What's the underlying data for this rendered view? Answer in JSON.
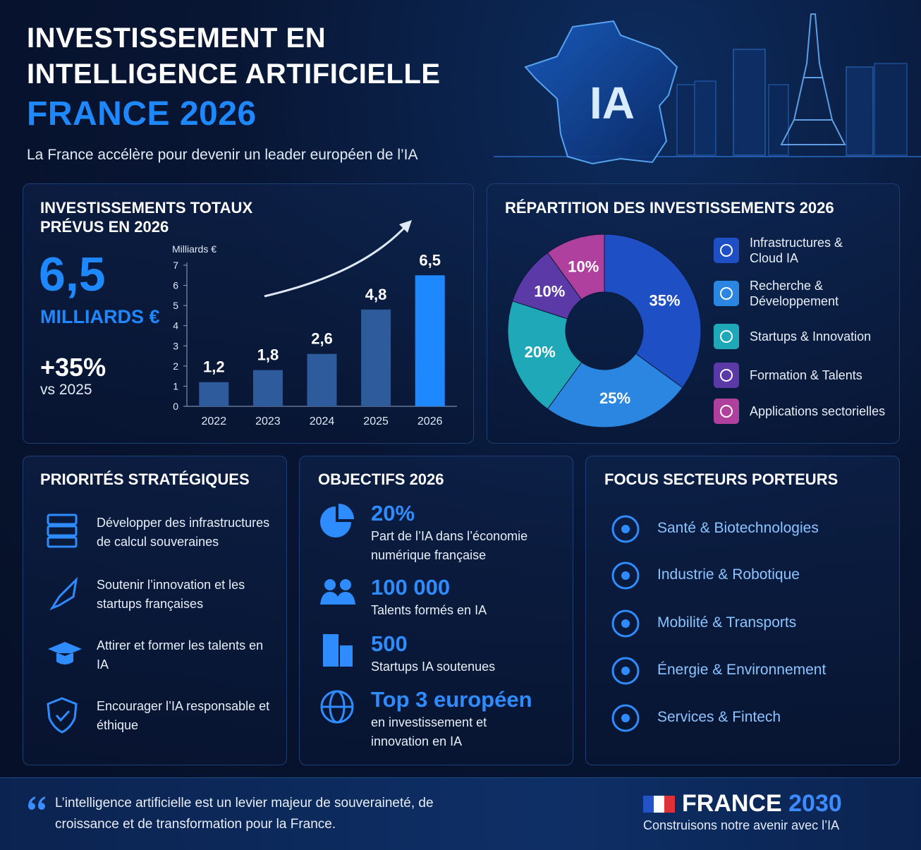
{
  "header": {
    "title_line1": "INVESTISSEMENT EN",
    "title_line2": "INTELLIGENCE ARTIFICIELLE",
    "title_highlight": "FRANCE 2026",
    "subtitle": "La France accélère pour devenir un leader européen de l’IA",
    "map_label": "IA"
  },
  "totals": {
    "title_line1": "INVESTISSEMENTS TOTAUX",
    "title_line2": "PRÉVUS EN 2026",
    "big_value": "6,5",
    "big_unit": "MILLIARDS €",
    "growth": "+35%",
    "growth_ref": "vs 2025"
  },
  "chart_data": [
    {
      "type": "bar",
      "y_label": "Milliards €",
      "categories": [
        "2022",
        "2023",
        "2024",
        "2025",
        "2026"
      ],
      "values": [
        1.2,
        1.8,
        2.6,
        4.8,
        6.5
      ],
      "value_labels": [
        "1,2",
        "1,8",
        "2,6",
        "4,8",
        "6,5"
      ],
      "colors": [
        "#2d5b9c",
        "#2d5b9c",
        "#2d5b9c",
        "#2d5b9c",
        "#1e88ff"
      ],
      "ylim": [
        0,
        7
      ],
      "yticks": [
        0,
        1,
        2,
        3,
        4,
        5,
        6,
        7
      ]
    },
    {
      "type": "donut",
      "title": "RÉPARTITION DES INVESTISSEMENTS 2026",
      "categories": [
        "Infrastructures & Cloud IA",
        "Recherche & Développement",
        "Startups & Innovation",
        "Formation & Talents",
        "Applications sectorielles"
      ],
      "values": [
        35,
        25,
        20,
        10,
        10
      ],
      "value_labels": [
        "35%",
        "25%",
        "20%",
        "10%",
        "10%"
      ],
      "colors": [
        "#1f4fc4",
        "#2a86e0",
        "#1fa8b8",
        "#5b3aa8",
        "#b0409e"
      ]
    }
  ],
  "priorities": {
    "title": "PRIORITÉS STRATÉGIQUES",
    "items": [
      "Développer des infrastructures de calcul souveraines",
      "Soutenir l’innovation et les startups françaises",
      "Attirer et former les talents en IA",
      "Encourager l’IA responsable et éthique"
    ]
  },
  "objectives": {
    "title": "OBJECTIFS 2026",
    "items": [
      {
        "value": "20%",
        "text": "Part de l’IA dans l’économie numérique française"
      },
      {
        "value": "100 000",
        "text": "Talents formés en IA"
      },
      {
        "value": "500",
        "text": "Startups IA soutenues"
      },
      {
        "value": "Top 3 européen",
        "text": "en investissement et innovation en IA"
      }
    ]
  },
  "sectors": {
    "title": "FOCUS SECTEURS PORTEURS",
    "items": [
      "Santé & Biotechnologies",
      "Industrie & Robotique",
      "Mobilité & Transports",
      "Énergie & Environnement",
      "Services & Fintech"
    ]
  },
  "footer": {
    "quote": "L’intelligence artificielle est un levier majeur de souveraineté, de croissance et de transformation pour la France.",
    "brand": "FRANCE",
    "brand_year": "2030",
    "tagline": "Construisons notre avenir avec l’IA"
  }
}
